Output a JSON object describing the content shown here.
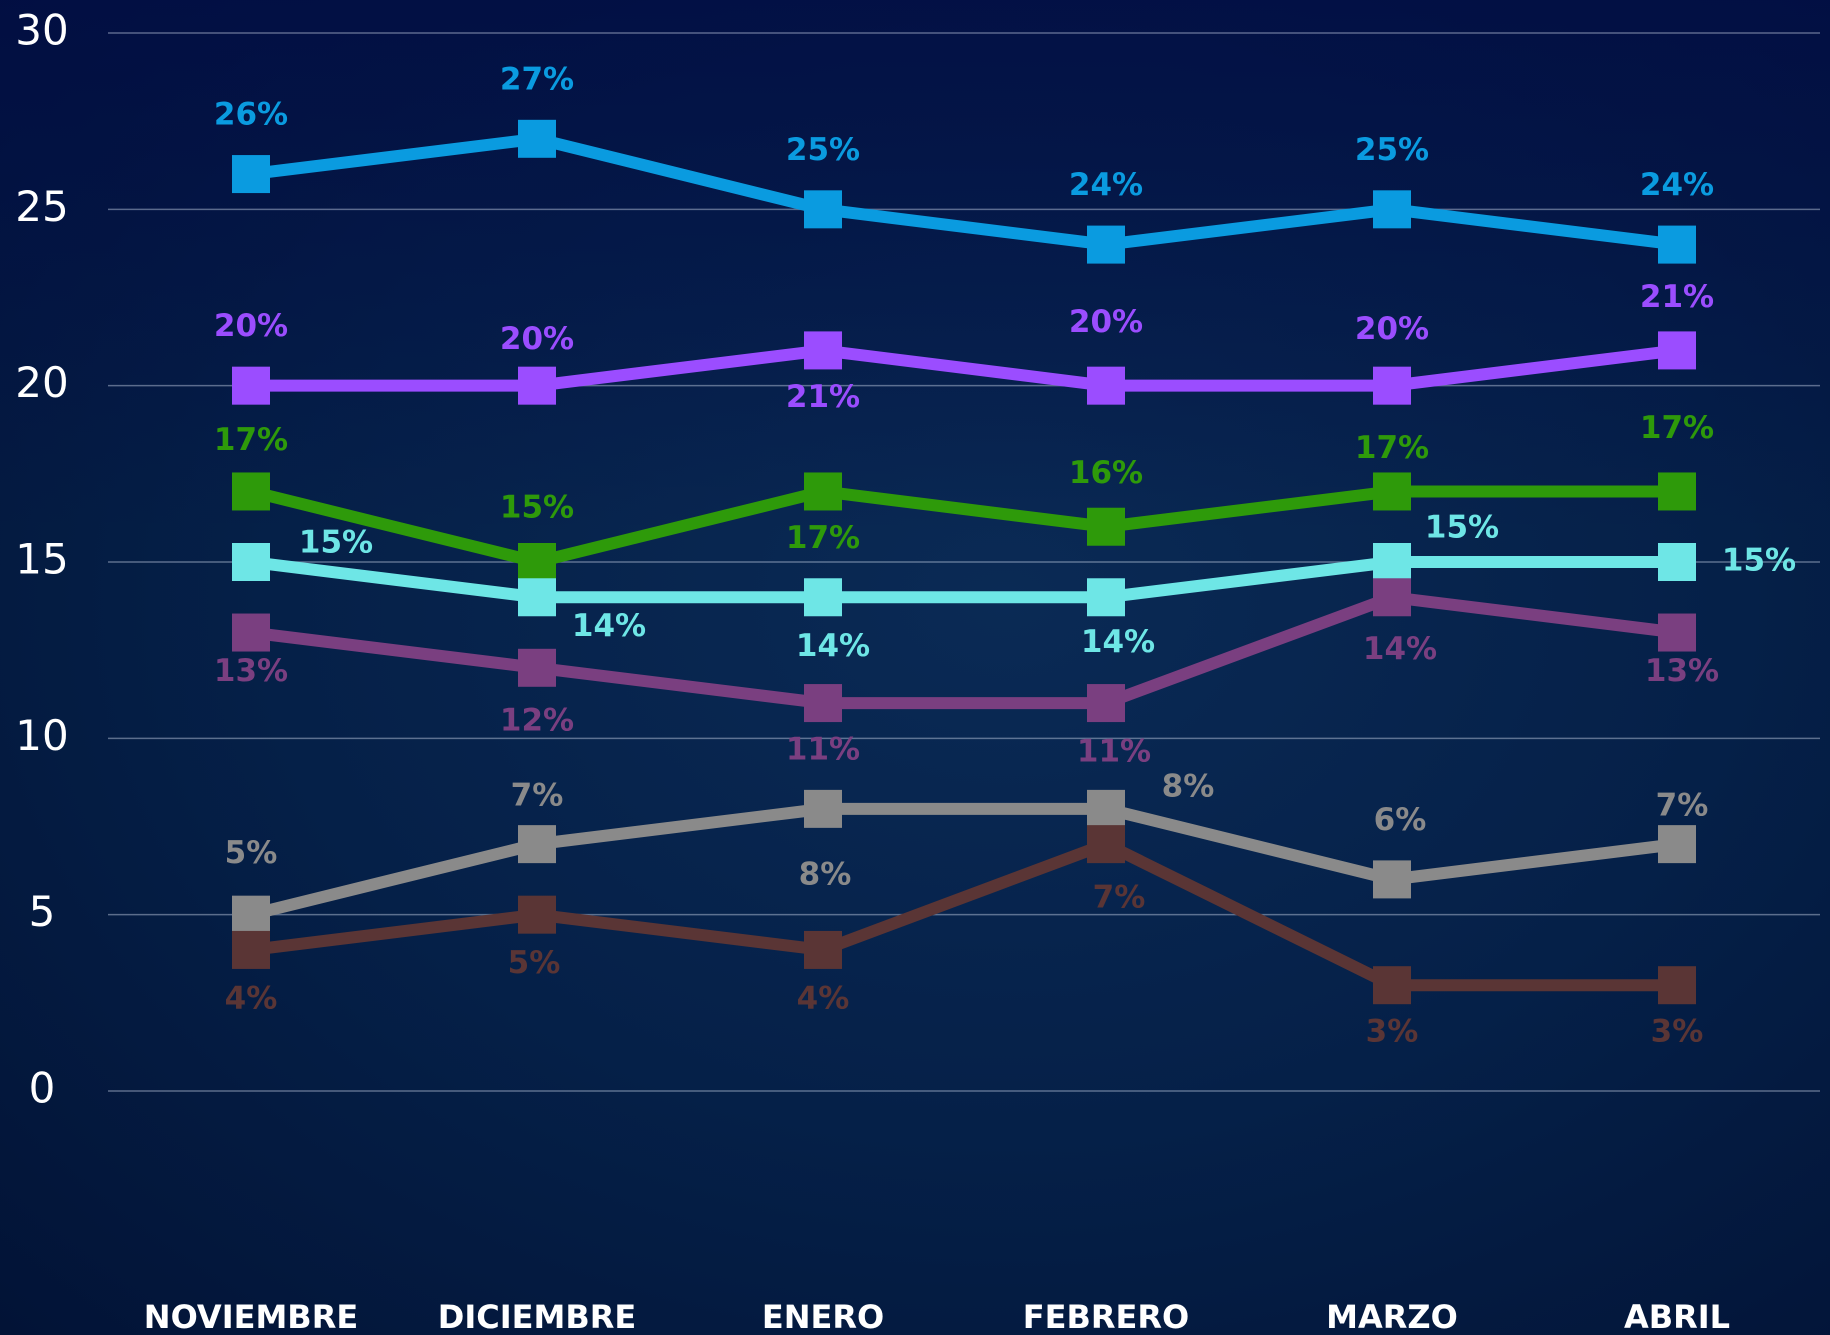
{
  "chart_data": {
    "type": "line",
    "categories": [
      "NOVIEMBRE",
      "DICIEMBRE",
      "ENERO",
      "FEBRERO",
      "MARZO",
      "ABRIL"
    ],
    "ylim": [
      0,
      30
    ],
    "yticks": [
      0,
      5,
      10,
      15,
      20,
      25,
      30
    ],
    "grid": true,
    "series": [
      {
        "color": "#0a9be0",
        "values": [
          26,
          27,
          25,
          24,
          25,
          24
        ],
        "value_labels": [
          "26%",
          "27%",
          "25%",
          "24%",
          "25%",
          "24%"
        ]
      },
      {
        "color": "#9b4dff",
        "values": [
          20,
          20,
          21,
          20,
          20,
          21
        ],
        "value_labels": [
          "20%",
          "20%",
          "21%",
          "20%",
          "20%",
          "21%"
        ]
      },
      {
        "color": "#2e9a0a",
        "values": [
          17,
          15,
          17,
          16,
          17,
          17
        ],
        "value_labels": [
          "17%",
          "15%",
          "17%",
          "16%",
          "17%",
          "17%"
        ]
      },
      {
        "color": "#6ee6e6",
        "values": [
          15,
          14,
          14,
          14,
          15,
          15
        ],
        "value_labels": [
          "15%",
          "14%",
          "14%",
          "14%",
          "15%",
          "15%"
        ]
      },
      {
        "color": "#7a3f80",
        "values": [
          13,
          12,
          11,
          11,
          14,
          13
        ],
        "value_labels": [
          "13%",
          "12%",
          "11%",
          "11%",
          "14%",
          "13%"
        ]
      },
      {
        "color": "#8a8a8a",
        "values": [
          5,
          7,
          8,
          8,
          6,
          7
        ],
        "value_labels": [
          "5%",
          "7%",
          "8%",
          "8%",
          "6%",
          "7%"
        ]
      },
      {
        "color": "#5a3535",
        "values": [
          4,
          5,
          4,
          7,
          3,
          3
        ],
        "value_labels": [
          "4%",
          "5%",
          "4%",
          "7%",
          "3%",
          "3%"
        ]
      }
    ]
  }
}
